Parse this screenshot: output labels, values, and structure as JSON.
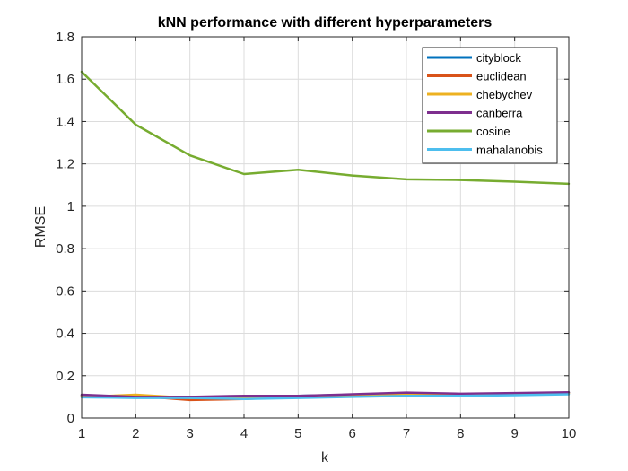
{
  "chart_data": {
    "type": "line",
    "title": "kNN performance with different hyperparameters",
    "xlabel": "k",
    "ylabel": "RMSE",
    "xlim": [
      1,
      10
    ],
    "ylim": [
      0,
      1.8
    ],
    "xticks": [
      1,
      2,
      3,
      4,
      5,
      6,
      7,
      8,
      9,
      10
    ],
    "yticks": [
      0,
      0.2,
      0.4,
      0.6,
      0.8,
      1,
      1.2,
      1.4,
      1.6,
      1.8
    ],
    "ytick_labels": [
      "0",
      "0.2",
      "0.4",
      "0.6",
      "0.8",
      "1",
      "1.2",
      "1.4",
      "1.6",
      "1.8"
    ],
    "grid": true,
    "legend_position": "top-right",
    "x": [
      1,
      2,
      3,
      4,
      5,
      6,
      7,
      8,
      9,
      10
    ],
    "series": [
      {
        "name": "cityblock",
        "color": "#0072BD",
        "values": [
          0.108,
          0.1,
          0.1,
          0.1,
          0.105,
          0.11,
          0.115,
          0.113,
          0.115,
          0.12
        ]
      },
      {
        "name": "euclidean",
        "color": "#D95319",
        "values": [
          0.105,
          0.105,
          0.085,
          0.09,
          0.1,
          0.105,
          0.11,
          0.11,
          0.113,
          0.118
        ]
      },
      {
        "name": "chebychev",
        "color": "#EDB120",
        "values": [
          0.1,
          0.11,
          0.095,
          0.095,
          0.1,
          0.105,
          0.11,
          0.11,
          0.113,
          0.118
        ]
      },
      {
        "name": "canberra",
        "color": "#7E2F8E",
        "values": [
          0.11,
          0.1,
          0.1,
          0.105,
          0.105,
          0.112,
          0.12,
          0.115,
          0.118,
          0.122
        ]
      },
      {
        "name": "cosine",
        "color": "#77AC30",
        "values": [
          1.635,
          1.385,
          1.24,
          1.152,
          1.172,
          1.145,
          1.127,
          1.124,
          1.116,
          1.106
        ]
      },
      {
        "name": "mahalanobis",
        "color": "#4DBEEE",
        "values": [
          0.098,
          0.095,
          0.095,
          0.09,
          0.095,
          0.1,
          0.105,
          0.105,
          0.108,
          0.112
        ]
      }
    ]
  }
}
